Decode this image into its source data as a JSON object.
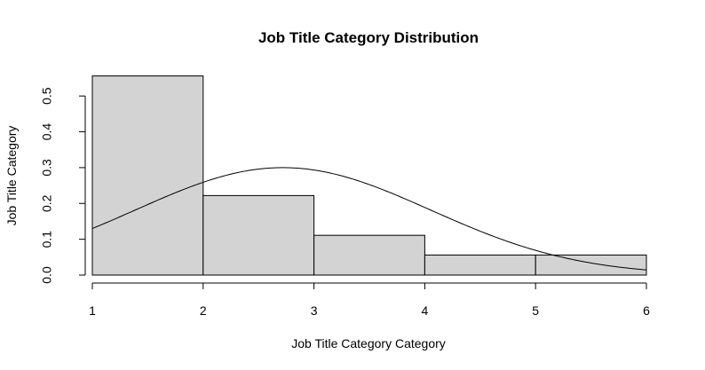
{
  "chart_data": {
    "type": "histogram",
    "title": "Job Title Category Distribution",
    "xlabel": "Job Title Category Category",
    "ylabel": "Job Title Category",
    "xlim": [
      1,
      6
    ],
    "ylim": [
      0,
      0.55
    ],
    "x_ticks": [
      1,
      2,
      3,
      4,
      5,
      6
    ],
    "y_ticks": [
      0.0,
      0.1,
      0.2,
      0.3,
      0.4,
      0.5
    ],
    "x_tick_labels": [
      "1",
      "2",
      "3",
      "4",
      "5",
      "6"
    ],
    "y_tick_labels": [
      "0.0",
      "0.1",
      "0.2",
      "0.3",
      "0.4",
      "0.5"
    ],
    "bins": [
      {
        "x0": 1,
        "x1": 2,
        "density": 0.556
      },
      {
        "x0": 2,
        "x1": 3,
        "density": 0.222
      },
      {
        "x0": 3,
        "x1": 4,
        "density": 0.111
      },
      {
        "x0": 4,
        "x1": 5,
        "density": 0.056
      },
      {
        "x0": 5,
        "x1": 6,
        "density": 0.056
      }
    ],
    "density_curve": {
      "type": "normal",
      "mean": 2.72,
      "sd": 1.33
    },
    "bar_color": "#d3d3d3",
    "line_color": "#000000",
    "grid": false
  }
}
